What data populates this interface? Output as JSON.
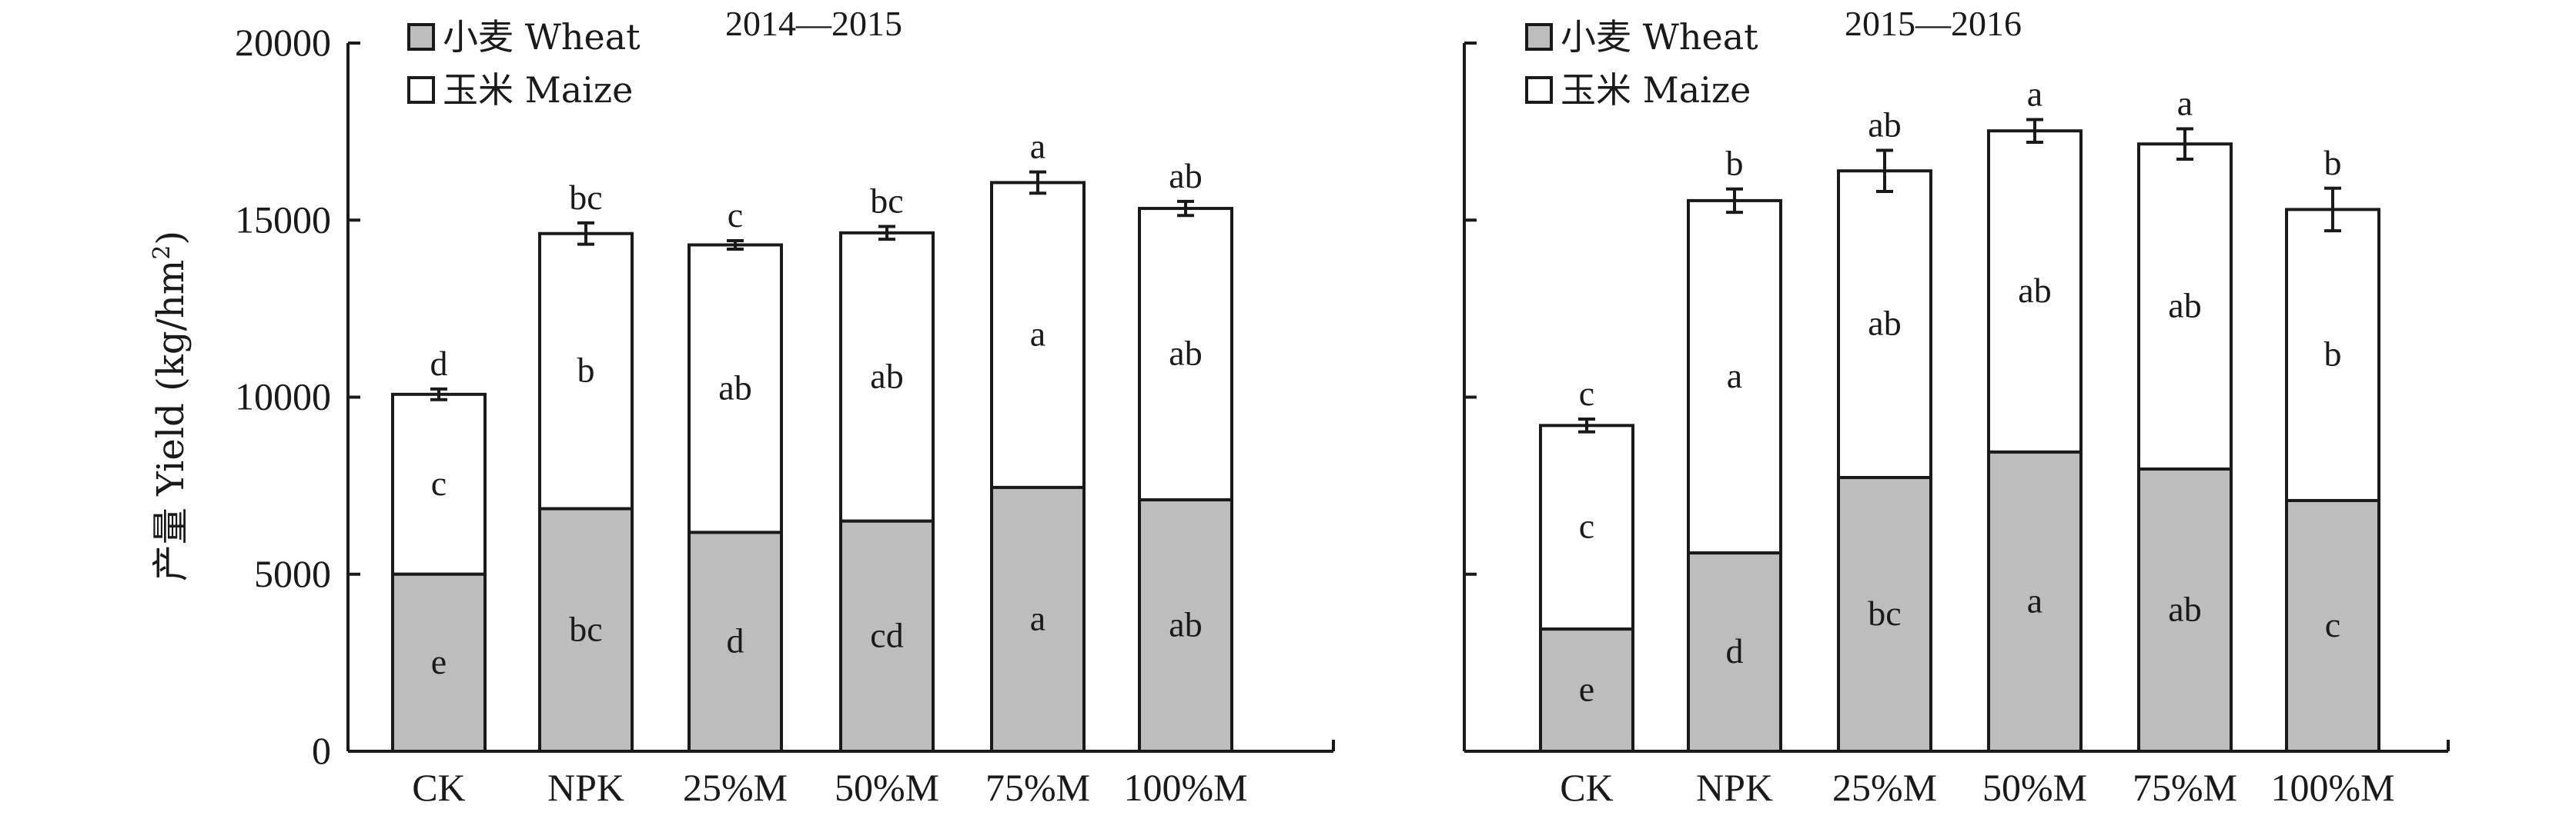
{
  "ylabel": {
    "main": "产量 Yield (kg/hm",
    "sup": "2",
    "close": ")"
  },
  "legend": {
    "wheat": "小麦 Wheat",
    "maize": "玉米 Maize"
  },
  "colors": {
    "wheat": "#bdbdbd",
    "maize": "#ffffff",
    "stroke": "#1a1a1a"
  },
  "chart_data": [
    {
      "type": "bar",
      "stacked": true,
      "title": "2014—2015",
      "categories": [
        "CK",
        "NPK",
        "25%M",
        "50%M",
        "75%M",
        "100%M"
      ],
      "ylim": [
        0,
        20000
      ],
      "yticks": [
        0,
        5000,
        10000,
        15000,
        20000
      ],
      "series": [
        {
          "name": "小麦 Wheat",
          "values": [
            5000,
            6850,
            6180,
            6500,
            7450,
            7100
          ],
          "letters": [
            "e",
            "bc",
            "d",
            "cd",
            "a",
            "ab"
          ]
        },
        {
          "name": "玉米 Maize",
          "values": [
            5080,
            7770,
            8120,
            8140,
            8610,
            8230
          ],
          "letters": [
            "c",
            "b",
            "ab",
            "ab",
            "a",
            "ab"
          ]
        }
      ],
      "totals": [
        10080,
        14620,
        14300,
        14640,
        16060,
        15330
      ],
      "errors": [
        150,
        300,
        120,
        180,
        300,
        200
      ],
      "total_letters": [
        "d",
        "bc",
        "c",
        "bc",
        "a",
        "ab"
      ]
    },
    {
      "type": "bar",
      "stacked": true,
      "title": "2015—2016",
      "categories": [
        "CK",
        "NPK",
        "25%M",
        "50%M",
        "75%M",
        "100%M"
      ],
      "ylim": [
        0,
        20000
      ],
      "yticks": [
        0,
        5000,
        10000,
        15000,
        20000
      ],
      "series": [
        {
          "name": "小麦 Wheat",
          "values": [
            3450,
            5600,
            7730,
            8450,
            7970,
            7080
          ],
          "letters": [
            "e",
            "d",
            "bc",
            "a",
            "ab",
            "c"
          ]
        },
        {
          "name": "玉米 Maize",
          "values": [
            5750,
            9950,
            8660,
            9070,
            9180,
            8220
          ],
          "letters": [
            "c",
            "a",
            "ab",
            "ab",
            "ab",
            "b"
          ]
        }
      ],
      "totals": [
        9200,
        15550,
        16390,
        17520,
        17150,
        15300
      ],
      "errors": [
        180,
        330,
        580,
        320,
        430,
        600
      ],
      "total_letters": [
        "c",
        "b",
        "ab",
        "a",
        "a",
        "b"
      ]
    }
  ]
}
